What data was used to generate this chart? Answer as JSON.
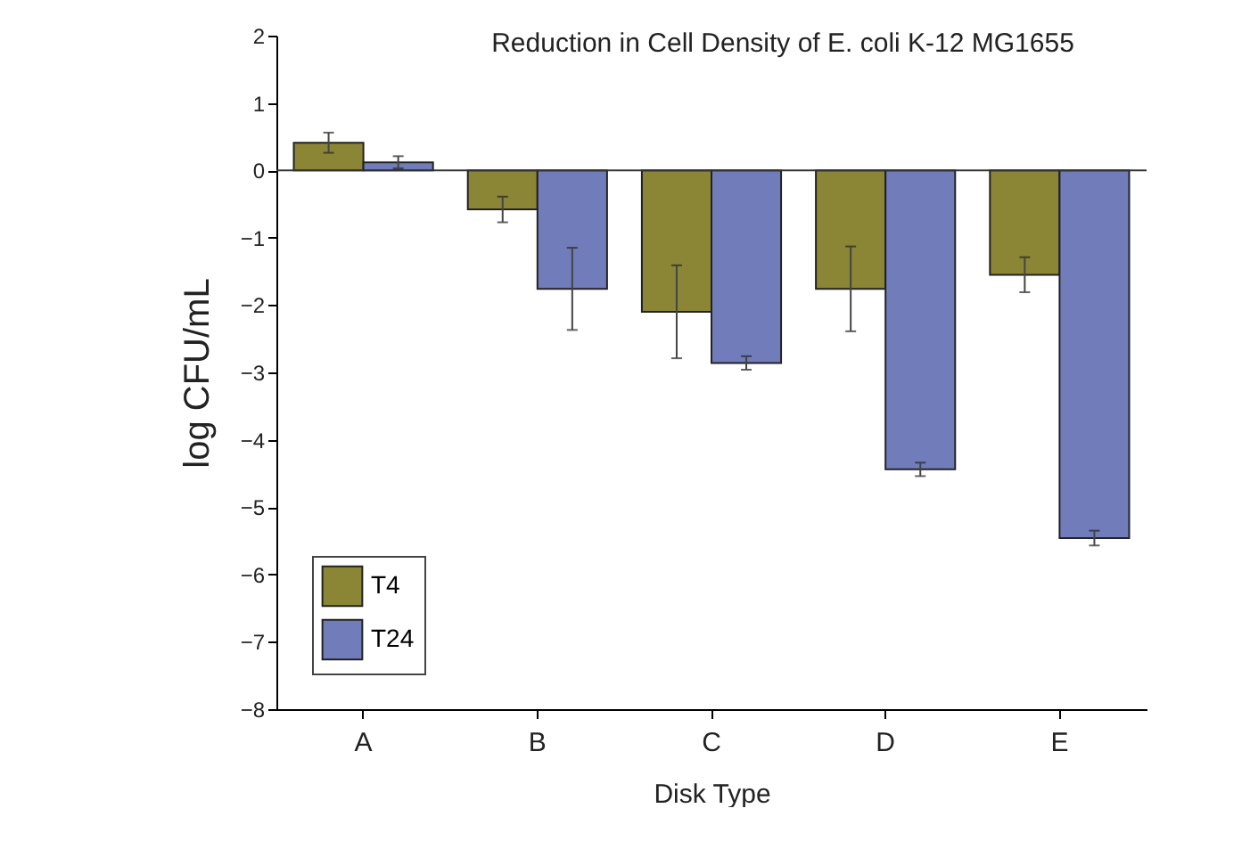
{
  "chart_data": {
    "type": "bar",
    "title": "Reduction in Cell Density of E. coli K-12 MG1655",
    "xlabel": "Disk Type",
    "ylabel": "log CFU/mL",
    "categories": [
      "A",
      "B",
      "C",
      "D",
      "E"
    ],
    "series": [
      {
        "name": "T4",
        "color": "#8b8636",
        "values": [
          0.41,
          -0.58,
          -2.1,
          -1.76,
          -1.55
        ],
        "errors": [
          0.15,
          0.19,
          0.69,
          0.63,
          0.26
        ]
      },
      {
        "name": "T24",
        "color": "#717dbb",
        "values": [
          0.12,
          -1.76,
          -2.86,
          -4.44,
          -5.46
        ],
        "errors": [
          0.09,
          0.61,
          0.1,
          0.1,
          0.11
        ]
      }
    ],
    "ylim": [
      -8,
      2
    ],
    "yticks": [
      -8,
      -7,
      -6,
      -5,
      -4,
      -3,
      -2,
      -1,
      0,
      1,
      2
    ],
    "ref_lines": [
      {
        "axis": "y",
        "value": 0
      }
    ],
    "legend": "bottom left",
    "grid": false
  }
}
